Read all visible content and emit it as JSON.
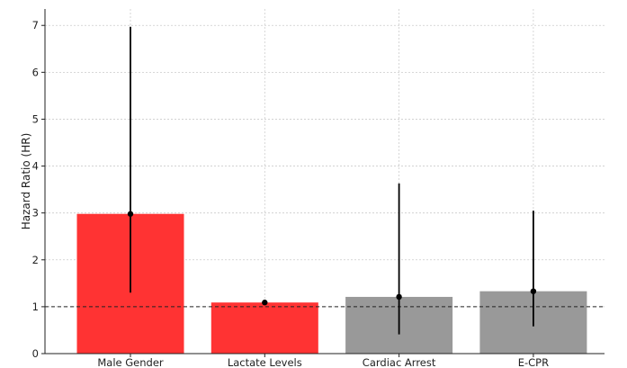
{
  "chart_data": {
    "type": "bar",
    "title": "",
    "xlabel": "",
    "ylabel": "Hazard Ratio (HR)",
    "categories": [
      "Male Gender",
      "Lactate Levels",
      "Cardiac Arrest",
      "E-CPR"
    ],
    "values": [
      2.98,
      1.09,
      1.21,
      1.33
    ],
    "ci_lower": [
      1.3,
      1.04,
      0.41,
      0.58
    ],
    "ci_upper": [
      6.97,
      1.15,
      3.63,
      3.05
    ],
    "bar_colors": [
      "#ff3333",
      "#ff3333",
      "#999999",
      "#999999"
    ],
    "reference_line": 1,
    "ylim": [
      0,
      7.35
    ],
    "yticks": [
      "0",
      "1",
      "2",
      "3",
      "4",
      "5",
      "6",
      "7"
    ],
    "grid": true
  }
}
